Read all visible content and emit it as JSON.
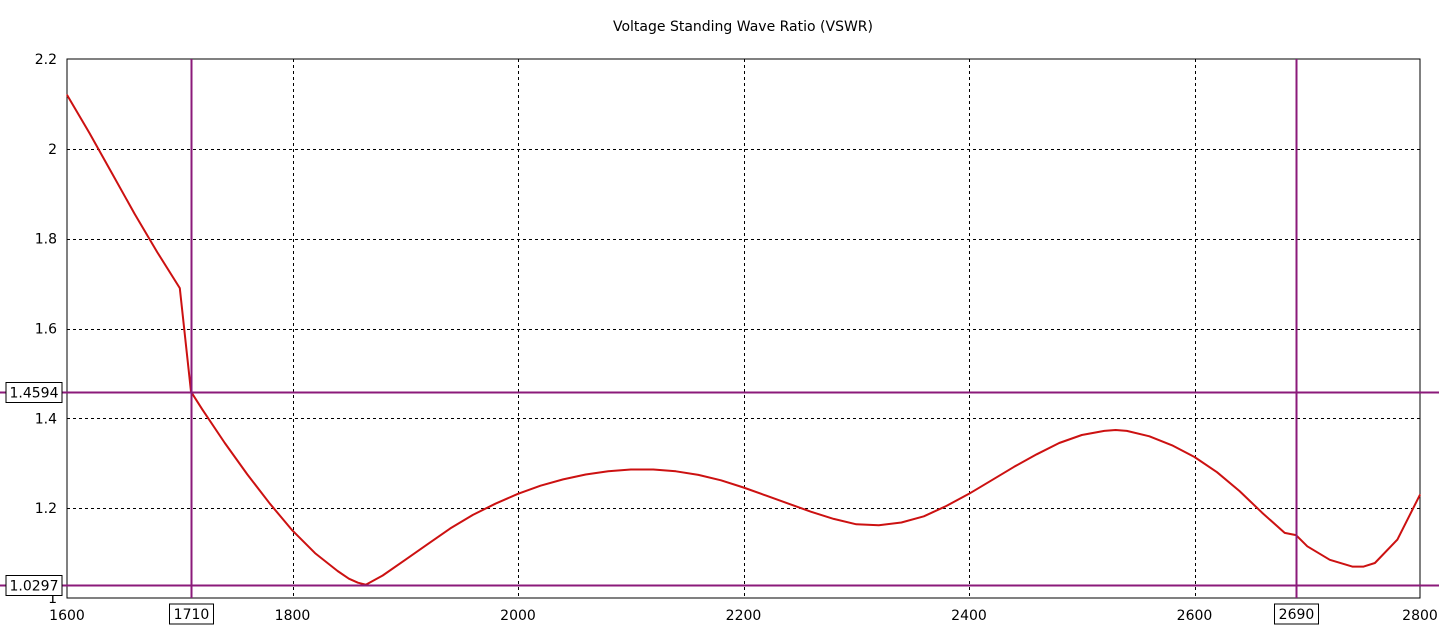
{
  "chart_data": {
    "type": "line",
    "title": "Voltage Standing Wave Ratio (VSWR)",
    "xlabel": "",
    "ylabel": "",
    "xlim": [
      1600,
      2800
    ],
    "ylim": [
      1,
      2.2
    ],
    "x_ticks": [
      1600,
      1800,
      2000,
      2200,
      2400,
      2600,
      2800
    ],
    "y_ticks": [
      1,
      1.2,
      1.4,
      1.6,
      1.8,
      2,
      2.2
    ],
    "grid": true,
    "legend": "none",
    "colors": {
      "curve": "#cc1111",
      "marker": "#8b1a7a",
      "grid": "#000000",
      "frame": "#000000"
    },
    "series": [
      {
        "x": [
          1600,
          1620,
          1640,
          1660,
          1680,
          1700,
          1710,
          1720,
          1740,
          1760,
          1780,
          1800,
          1820,
          1840,
          1850,
          1858,
          1865,
          1880,
          1900,
          1920,
          1940,
          1960,
          1980,
          2000,
          2020,
          2040,
          2060,
          2080,
          2100,
          2120,
          2140,
          2160,
          2180,
          2200,
          2220,
          2240,
          2260,
          2280,
          2300,
          2320,
          2340,
          2360,
          2380,
          2400,
          2420,
          2440,
          2460,
          2480,
          2500,
          2520,
          2530,
          2540,
          2560,
          2580,
          2600,
          2620,
          2640,
          2660,
          2680,
          2690,
          2700,
          2720,
          2740,
          2750,
          2760,
          2780,
          2800
        ],
        "values": [
          2.12,
          2.035,
          1.945,
          1.855,
          1.77,
          1.69,
          1.4594,
          1.42,
          1.345,
          1.275,
          1.21,
          1.15,
          1.1,
          1.06,
          1.043,
          1.034,
          1.0297,
          1.05,
          1.085,
          1.12,
          1.155,
          1.185,
          1.21,
          1.232,
          1.25,
          1.264,
          1.275,
          1.282,
          1.286,
          1.286,
          1.282,
          1.274,
          1.262,
          1.246,
          1.228,
          1.21,
          1.192,
          1.176,
          1.164,
          1.162,
          1.168,
          1.182,
          1.205,
          1.232,
          1.262,
          1.292,
          1.32,
          1.345,
          1.363,
          1.372,
          1.374,
          1.372,
          1.36,
          1.34,
          1.314,
          1.28,
          1.238,
          1.19,
          1.145,
          1.14,
          1.115,
          1.085,
          1.07,
          1.07,
          1.078,
          1.13,
          1.23
        ]
      }
    ],
    "markers": {
      "vertical": [
        {
          "x": 1710,
          "label": "1710"
        },
        {
          "x": 2690,
          "label": "2690"
        }
      ],
      "horizontal": [
        {
          "y": 1.4594,
          "label": "1.4594"
        },
        {
          "y": 1.0297,
          "label": "1.0297"
        }
      ]
    }
  }
}
